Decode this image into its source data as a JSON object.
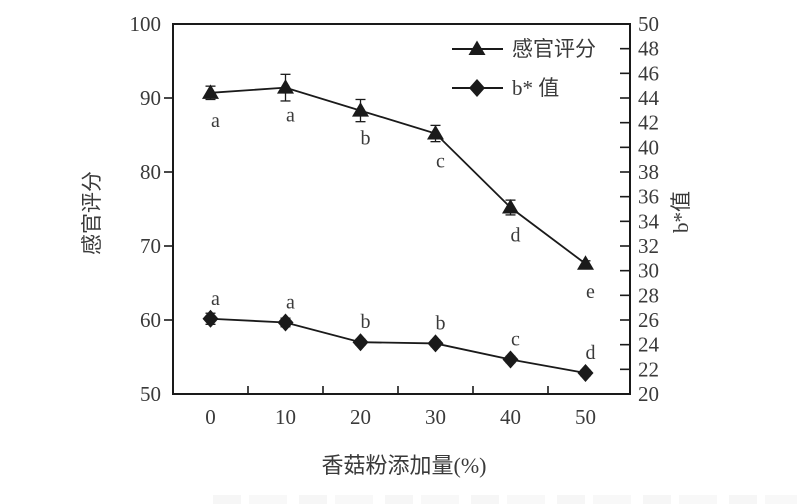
{
  "page": {
    "background": "#ffffff"
  },
  "chart_data": {
    "type": "line",
    "title": "",
    "x": [
      0,
      10,
      20,
      30,
      40,
      50
    ],
    "xlabel": "香菇粉添加量(%)",
    "x_tick_labels": [
      "0",
      "10",
      "20",
      "30",
      "40",
      "50"
    ],
    "x_minor_ticks": [
      5,
      15,
      25,
      35,
      45
    ],
    "left_axis": {
      "label": "感官评分",
      "range": [
        50,
        100
      ],
      "ticks": [
        100,
        90,
        80,
        70,
        60,
        50
      ]
    },
    "right_axis": {
      "label": "b*值",
      "range": [
        20,
        50
      ],
      "ticks": [
        50,
        48,
        46,
        44,
        42,
        40,
        38,
        36,
        34,
        32,
        30,
        28,
        26,
        24,
        22,
        20
      ]
    },
    "series": [
      {
        "name": "感官评分",
        "axis": "left",
        "marker": "triangle",
        "values": [
          90.7,
          91.4,
          88.3,
          85.2,
          75.2,
          67.6
        ],
        "errors": [
          0.9,
          1.8,
          1.5,
          1.1,
          1.0,
          0.4
        ],
        "letters": [
          "a",
          "a",
          "b",
          "c",
          "d",
          "e"
        ],
        "letter_position": "below"
      },
      {
        "name": "b* 值",
        "axis": "right",
        "marker": "diamond",
        "values": [
          26.1,
          25.8,
          24.2,
          24.1,
          22.8,
          21.7
        ],
        "errors": [
          0.45,
          0.35,
          0.25,
          0.25,
          0.25,
          0.25
        ],
        "letters": [
          "a",
          "a",
          "b",
          "b",
          "c",
          "d"
        ],
        "letter_position": "above"
      }
    ],
    "legend": {
      "position": "top-right",
      "entries": [
        "感官评分",
        "b* 值"
      ]
    },
    "grid": "off",
    "colors": {
      "line": "#1a1a1a",
      "text": "#3a3a3a"
    }
  }
}
